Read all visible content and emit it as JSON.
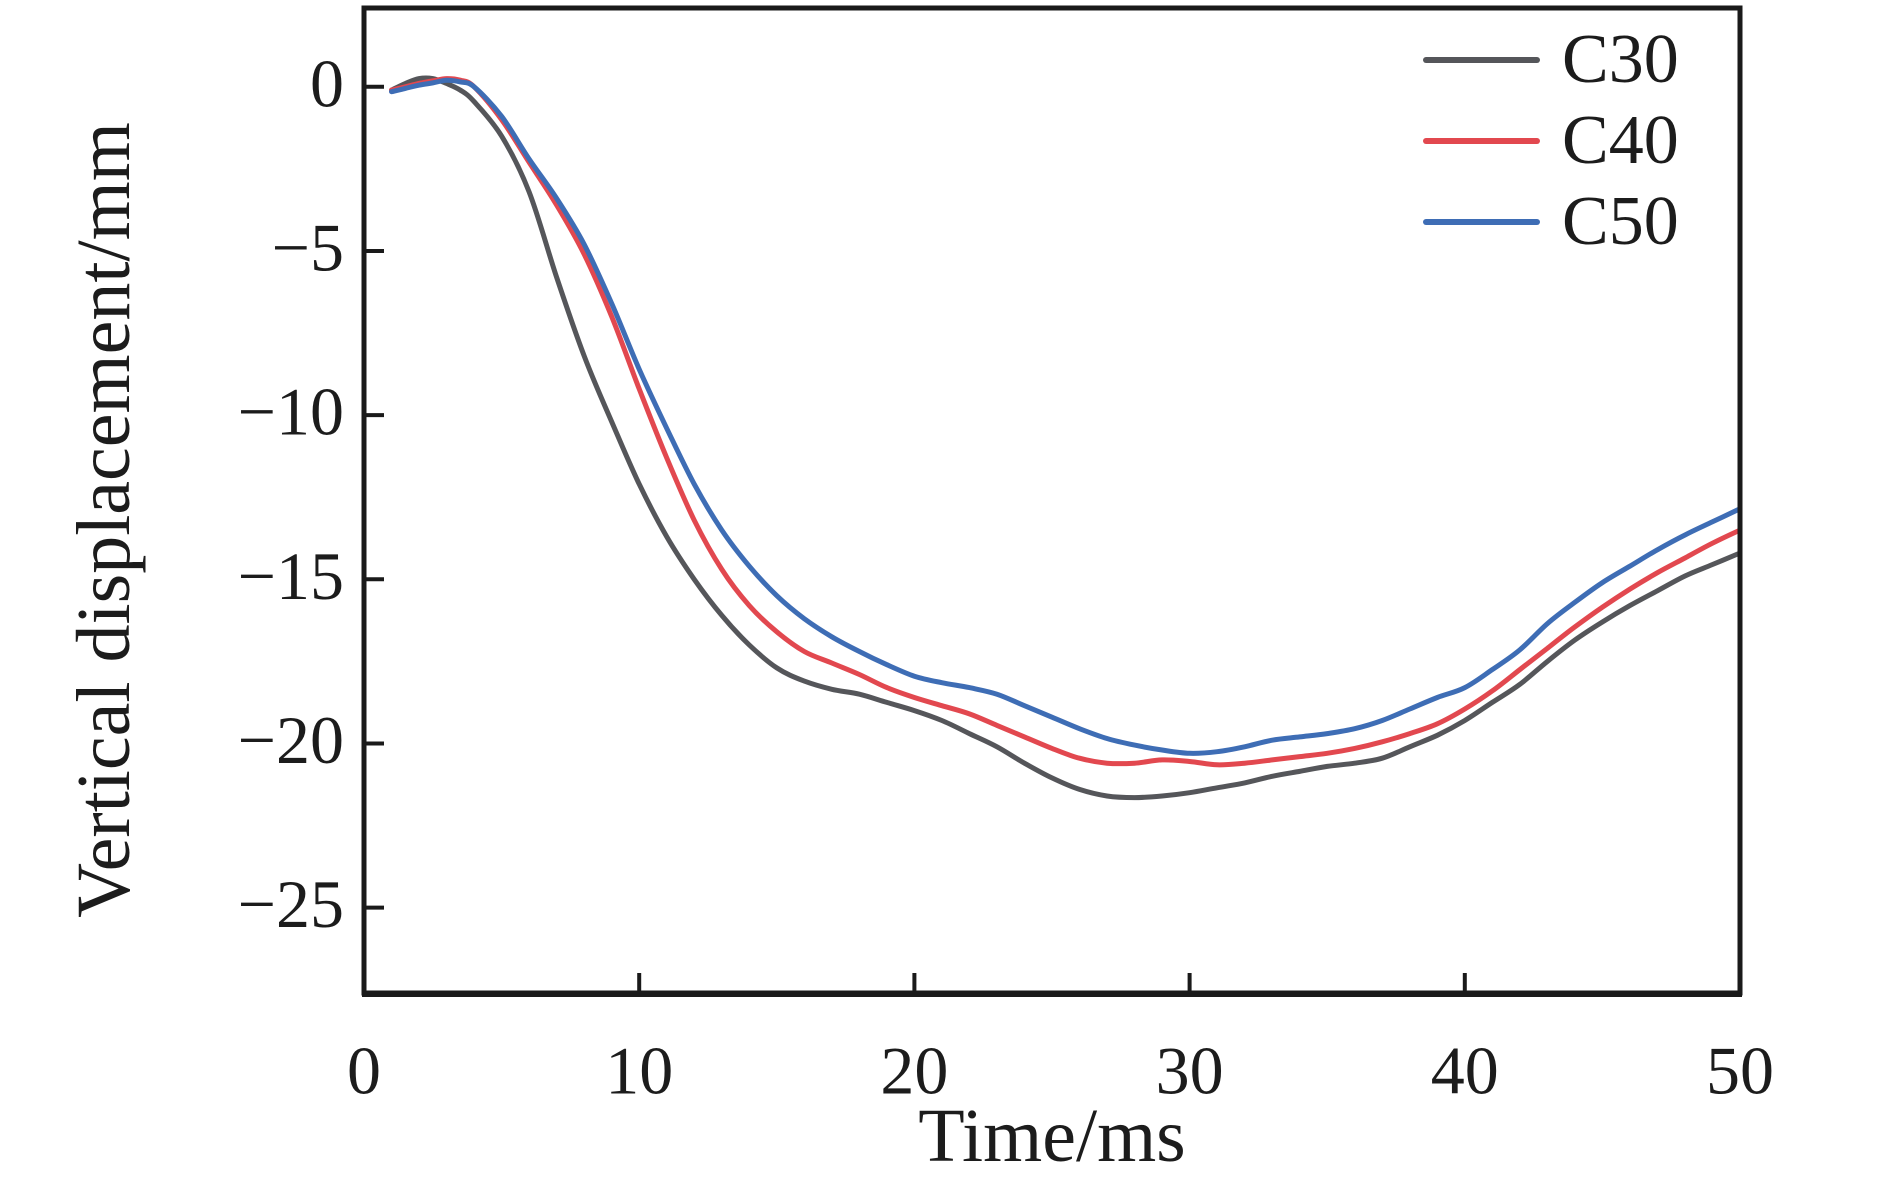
{
  "figure": {
    "background": "#ffffff",
    "axis_color": "#1a1a1a",
    "text_color": "#1c1c1c"
  },
  "chart_data": {
    "type": "line",
    "title": "",
    "xlabel": "Time/ms",
    "ylabel": "Vertical displacement/mm",
    "xlim": [
      0,
      50
    ],
    "ylim": [
      -27.6,
      2.4
    ],
    "x_ticks": [
      0,
      10,
      20,
      30,
      40,
      50
    ],
    "x_tick_labels": [
      "0",
      "10",
      "20",
      "30",
      "40",
      "50"
    ],
    "y_ticks": [
      0,
      -5,
      -10,
      -15,
      -20,
      -25
    ],
    "y_tick_labels": [
      "0",
      "−5",
      "−10",
      "−15",
      "−20",
      "−25"
    ],
    "grid": false,
    "legend_position": "top-right",
    "x": [
      1,
      1.5,
      2,
      2.5,
      3,
      3.5,
      4,
      5,
      6,
      7,
      8,
      9,
      10,
      11,
      12,
      13,
      14,
      15,
      16,
      17,
      18,
      19,
      20,
      21,
      22,
      23,
      24,
      25,
      26,
      27,
      28,
      29,
      30,
      31,
      32,
      33,
      34,
      35,
      36,
      37,
      38,
      39,
      40,
      41,
      42,
      43,
      44,
      45,
      46,
      47,
      48,
      49,
      50
    ],
    "series": [
      {
        "name": "C30",
        "color": "#55565a",
        "values": [
          -0.1,
          0.1,
          0.25,
          0.25,
          0.1,
          -0.1,
          -0.45,
          -1.5,
          -3.2,
          -5.8,
          -8.2,
          -10.2,
          -12.1,
          -13.7,
          -15.0,
          -16.1,
          -17.0,
          -17.7,
          -18.1,
          -18.35,
          -18.5,
          -18.75,
          -19.0,
          -19.3,
          -19.7,
          -20.1,
          -20.6,
          -21.05,
          -21.4,
          -21.6,
          -21.65,
          -21.6,
          -21.5,
          -21.35,
          -21.2,
          -21.0,
          -20.85,
          -20.7,
          -20.6,
          -20.45,
          -20.1,
          -19.75,
          -19.3,
          -18.75,
          -18.2,
          -17.5,
          -16.85,
          -16.3,
          -15.8,
          -15.35,
          -14.9,
          -14.55,
          -14.2
        ]
      },
      {
        "name": "C40",
        "color": "#e2484f",
        "values": [
          -0.1,
          0.0,
          0.1,
          0.18,
          0.25,
          0.2,
          0.0,
          -1.0,
          -2.3,
          -3.6,
          -5.1,
          -7.0,
          -9.2,
          -11.3,
          -13.2,
          -14.7,
          -15.8,
          -16.6,
          -17.2,
          -17.55,
          -17.9,
          -18.3,
          -18.6,
          -18.85,
          -19.1,
          -19.45,
          -19.8,
          -20.15,
          -20.45,
          -20.6,
          -20.6,
          -20.5,
          -20.55,
          -20.65,
          -20.6,
          -20.5,
          -20.4,
          -20.3,
          -20.15,
          -19.95,
          -19.7,
          -19.4,
          -18.95,
          -18.4,
          -17.75,
          -17.1,
          -16.45,
          -15.85,
          -15.3,
          -14.8,
          -14.35,
          -13.9,
          -13.5
        ]
      },
      {
        "name": "C50",
        "color": "#3e6db5",
        "values": [
          -0.15,
          -0.05,
          0.05,
          0.12,
          0.2,
          0.15,
          0.0,
          -0.9,
          -2.2,
          -3.4,
          -4.8,
          -6.6,
          -8.6,
          -10.4,
          -12.1,
          -13.5,
          -14.6,
          -15.5,
          -16.2,
          -16.75,
          -17.2,
          -17.6,
          -17.95,
          -18.15,
          -18.3,
          -18.5,
          -18.85,
          -19.2,
          -19.55,
          -19.85,
          -20.05,
          -20.2,
          -20.3,
          -20.25,
          -20.1,
          -19.9,
          -19.8,
          -19.7,
          -19.55,
          -19.3,
          -18.95,
          -18.6,
          -18.3,
          -17.75,
          -17.15,
          -16.35,
          -15.7,
          -15.1,
          -14.6,
          -14.1,
          -13.65,
          -13.25,
          -12.85
        ]
      }
    ]
  }
}
